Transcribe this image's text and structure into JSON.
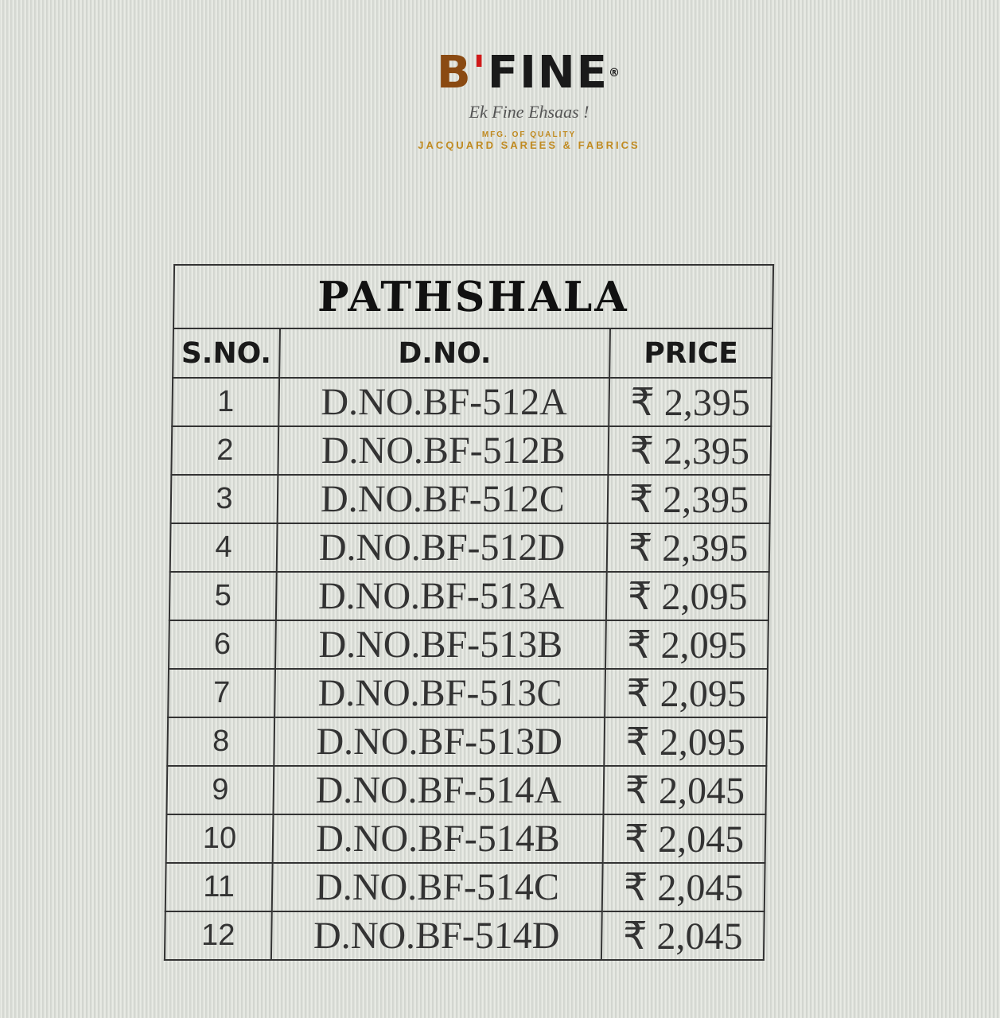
{
  "logo": {
    "brand_b": "B",
    "brand_apos": "'",
    "brand_rest": "FINE",
    "registered": "®",
    "tagline": "Ek Fine Ehsaas !",
    "mfg": "MFG. OF QUALITY",
    "products": "JACQUARD SAREES & FABRICS",
    "colors": {
      "b": "#8a4a12",
      "apostrophe": "#d01a1a",
      "gold": "#c08a20"
    }
  },
  "table": {
    "title": "PATHSHALA",
    "headers": [
      "S.NO.",
      "D.NO.",
      "PRICE"
    ],
    "rows": [
      {
        "sno": "1",
        "dno": "D.NO.BF-512A",
        "price": "₹ 2,395"
      },
      {
        "sno": "2",
        "dno": "D.NO.BF-512B",
        "price": "₹ 2,395"
      },
      {
        "sno": "3",
        "dno": "D.NO.BF-512C",
        "price": "₹ 2,395"
      },
      {
        "sno": "4",
        "dno": "D.NO.BF-512D",
        "price": "₹ 2,395"
      },
      {
        "sno": "5",
        "dno": "D.NO.BF-513A",
        "price": "₹ 2,095"
      },
      {
        "sno": "6",
        "dno": "D.NO.BF-513B",
        "price": "₹ 2,095"
      },
      {
        "sno": "7",
        "dno": "D.NO.BF-513C",
        "price": "₹ 2,095"
      },
      {
        "sno": "8",
        "dno": "D.NO.BF-513D",
        "price": "₹ 2,095"
      },
      {
        "sno": "9",
        "dno": "D.NO.BF-514A",
        "price": "₹ 2,045"
      },
      {
        "sno": "10",
        "dno": "D.NO.BF-514B",
        "price": "₹ 2,045"
      },
      {
        "sno": "11",
        "dno": "D.NO.BF-514C",
        "price": "₹ 2,045"
      },
      {
        "sno": "12",
        "dno": "D.NO.BF-514D",
        "price": "₹ 2,045"
      }
    ]
  }
}
